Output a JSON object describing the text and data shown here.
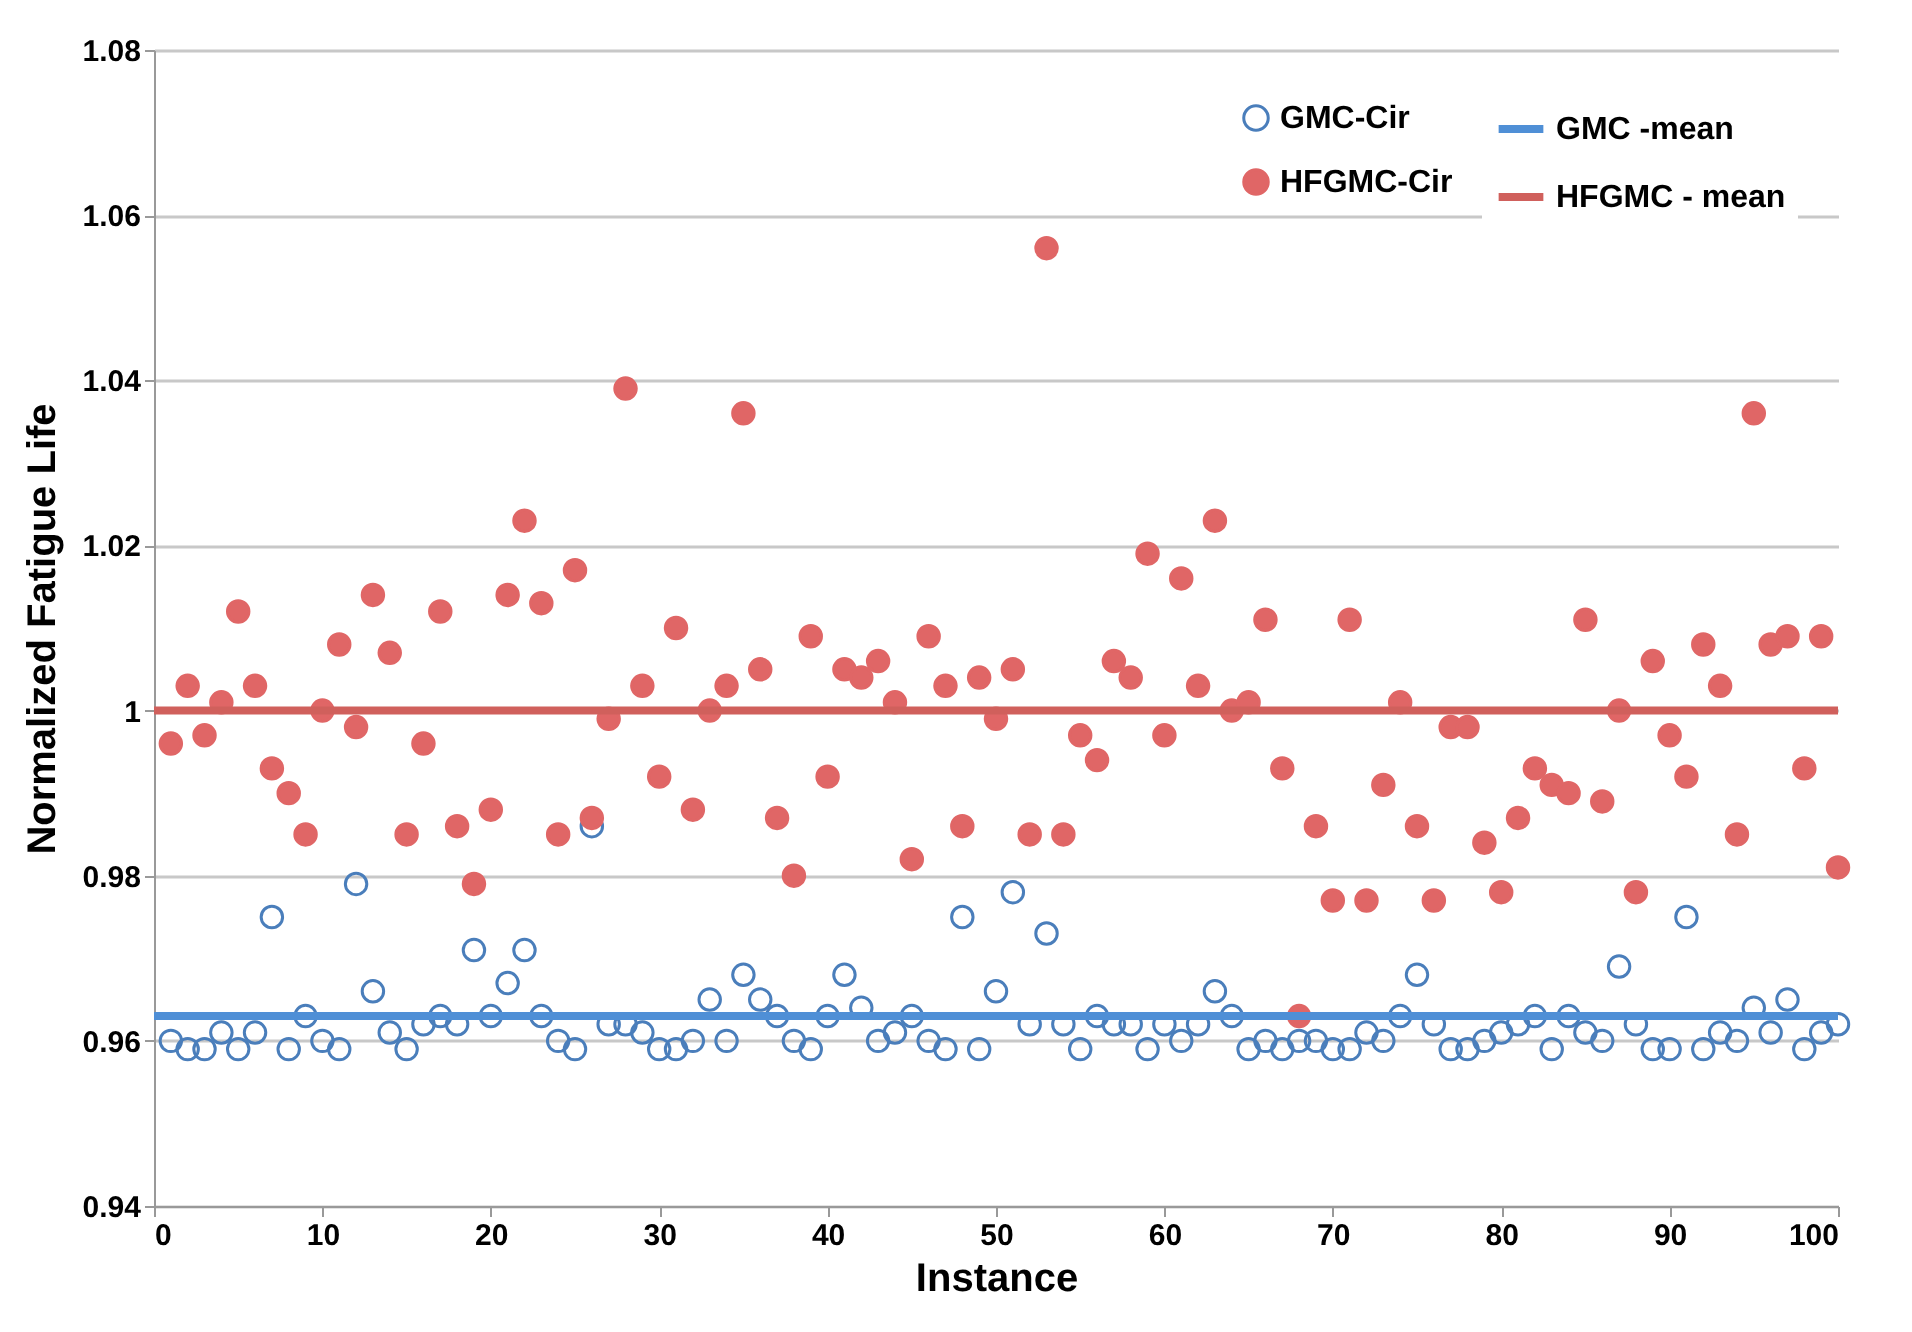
{
  "chart_data": {
    "type": "scatter",
    "xlabel": "Instance",
    "ylabel": "Normalized Fatigue Life",
    "x": [
      1,
      2,
      3,
      4,
      5,
      6,
      7,
      8,
      9,
      10,
      11,
      12,
      13,
      14,
      15,
      16,
      17,
      18,
      19,
      20,
      21,
      22,
      23,
      24,
      25,
      26,
      27,
      28,
      29,
      30,
      31,
      32,
      33,
      34,
      35,
      36,
      37,
      38,
      39,
      40,
      41,
      42,
      43,
      44,
      45,
      46,
      47,
      48,
      49,
      50,
      51,
      52,
      53,
      54,
      55,
      56,
      57,
      58,
      59,
      60,
      61,
      62,
      63,
      64,
      65,
      66,
      67,
      68,
      69,
      70,
      71,
      72,
      73,
      74,
      75,
      76,
      77,
      78,
      79,
      80,
      81,
      82,
      83,
      84,
      85,
      86,
      87,
      88,
      89,
      90,
      91,
      92,
      93,
      94,
      95,
      96,
      97,
      98,
      99,
      100
    ],
    "xlim": [
      0,
      100
    ],
    "xticks": [
      0,
      10,
      20,
      30,
      40,
      50,
      60,
      70,
      80,
      90,
      100
    ],
    "ylim": [
      0.94,
      1.08
    ],
    "yticks": [
      0.94,
      0.96,
      0.98,
      {
        "value": 1,
        "label": "1"
      },
      1.02,
      1.04,
      1.06,
      1.08
    ],
    "ref_lines": [
      {
        "axis": "y",
        "value": 0.963,
        "label": "GMC -mean",
        "color": "#4f8fd6"
      },
      {
        "axis": "y",
        "value": 1.0,
        "label": "HFGMC - mean",
        "color": "#d0605c"
      }
    ],
    "grid": "y",
    "legend": "top right",
    "marker": "circle",
    "series": [
      {
        "name": "GMC-Cir",
        "color": "#4a7ebb",
        "values": [
          0.96,
          0.959,
          0.959,
          0.961,
          0.959,
          0.961,
          0.975,
          0.959,
          0.963,
          0.96,
          0.959,
          0.979,
          0.966,
          0.961,
          0.959,
          0.962,
          0.963,
          0.962,
          0.971,
          0.963,
          0.967,
          0.971,
          0.963,
          0.96,
          0.959,
          0.986,
          0.962,
          0.962,
          0.961,
          0.959,
          0.959,
          0.96,
          0.965,
          0.96,
          0.968,
          0.965,
          0.963,
          0.96,
          0.959,
          0.963,
          0.968,
          0.964,
          0.96,
          0.961,
          0.963,
          0.96,
          0.959,
          0.975,
          0.959,
          0.966,
          0.978,
          0.962,
          0.973,
          0.962,
          0.959,
          0.963,
          0.962,
          0.962,
          0.959,
          0.962,
          0.96,
          0.962,
          0.966,
          0.963,
          0.959,
          0.96,
          0.959,
          0.96,
          0.96,
          0.959,
          0.959,
          0.961,
          0.96,
          0.963,
          0.968,
          0.962,
          0.959,
          0.959,
          0.96,
          0.961,
          0.962,
          0.963,
          0.959,
          0.963,
          0.961,
          0.96,
          0.969,
          0.962,
          0.959,
          0.959,
          0.975,
          0.959,
          0.961,
          0.96,
          0.964,
          0.961,
          0.965,
          0.959,
          0.961,
          0.962
        ]
      },
      {
        "name": "HFGMC-Cir",
        "color": "#e06666",
        "values": [
          0.996,
          1.003,
          0.997,
          1.001,
          1.012,
          1.003,
          0.993,
          0.99,
          0.985,
          1.0,
          1.008,
          0.998,
          1.014,
          1.007,
          0.985,
          0.996,
          1.012,
          0.986,
          0.979,
          0.988,
          1.014,
          1.023,
          1.013,
          0.985,
          1.017,
          0.987,
          0.999,
          1.039,
          1.003,
          0.992,
          1.01,
          0.988,
          1.0,
          1.003,
          1.036,
          1.005,
          0.987,
          0.98,
          1.009,
          0.992,
          1.005,
          1.004,
          1.006,
          1.001,
          0.982,
          1.009,
          1.003,
          0.986,
          1.004,
          0.999,
          1.005,
          0.985,
          1.056,
          0.985,
          0.997,
          0.994,
          1.006,
          1.004,
          1.019,
          0.997,
          1.016,
          1.003,
          1.023,
          1.0,
          1.001,
          1.011,
          0.993,
          0.963,
          0.986,
          0.977,
          1.011,
          0.977,
          0.991,
          1.001,
          0.986,
          0.977,
          0.998,
          0.998,
          0.984,
          0.978,
          0.987,
          0.993,
          0.991,
          0.99,
          1.011,
          0.989,
          1.0,
          0.978,
          1.006,
          0.997,
          0.992,
          1.008,
          1.003,
          0.985,
          1.036,
          1.008,
          1.009,
          0.993,
          1.009,
          0.981
        ]
      }
    ]
  }
}
